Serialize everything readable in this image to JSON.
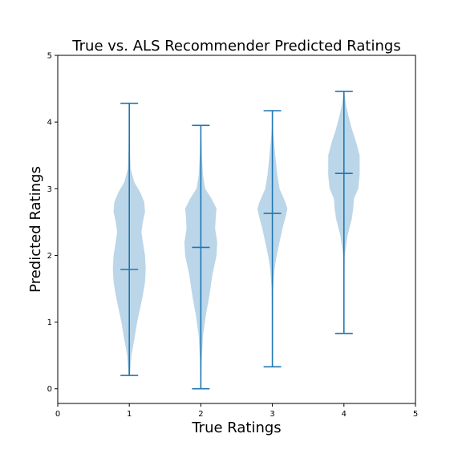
{
  "chart_data": {
    "type": "violin",
    "title": "True vs. ALS Recommender Predicted Ratings",
    "xlabel": "True Ratings",
    "ylabel": "Predicted Ratings",
    "xlim": [
      0,
      5
    ],
    "ylim": [
      -0.22,
      5
    ],
    "xticks": [
      "0",
      "1",
      "2",
      "3",
      "4",
      "5"
    ],
    "yticks": [
      "0",
      "1",
      "2",
      "3",
      "4",
      "5"
    ],
    "grid": false,
    "color": "#1f77b4",
    "violins": [
      {
        "position": 1,
        "min": 0.2,
        "max": 4.28,
        "mean": 1.79,
        "profile": [
          [
            0.2,
            0.01
          ],
          [
            0.5,
            0.03
          ],
          [
            0.8,
            0.08
          ],
          [
            1.0,
            0.11
          ],
          [
            1.2,
            0.15
          ],
          [
            1.4,
            0.19
          ],
          [
            1.6,
            0.22
          ],
          [
            1.8,
            0.23
          ],
          [
            2.0,
            0.22
          ],
          [
            2.2,
            0.19
          ],
          [
            2.35,
            0.17
          ],
          [
            2.5,
            0.19
          ],
          [
            2.65,
            0.22
          ],
          [
            2.8,
            0.21
          ],
          [
            2.95,
            0.15
          ],
          [
            3.1,
            0.07
          ],
          [
            3.3,
            0.02
          ],
          [
            3.6,
            0.01
          ],
          [
            4.28,
            0.003
          ]
        ]
      },
      {
        "position": 2,
        "min": 0.0,
        "max": 3.95,
        "mean": 2.12,
        "profile": [
          [
            0.0,
            0.005
          ],
          [
            0.4,
            0.01
          ],
          [
            0.8,
            0.03
          ],
          [
            1.1,
            0.07
          ],
          [
            1.4,
            0.12
          ],
          [
            1.7,
            0.16
          ],
          [
            2.0,
            0.22
          ],
          [
            2.2,
            0.23
          ],
          [
            2.4,
            0.2
          ],
          [
            2.6,
            0.21
          ],
          [
            2.7,
            0.22
          ],
          [
            2.85,
            0.15
          ],
          [
            3.0,
            0.06
          ],
          [
            3.2,
            0.03
          ],
          [
            3.5,
            0.015
          ],
          [
            3.95,
            0.003
          ]
        ]
      },
      {
        "position": 3,
        "min": 0.33,
        "max": 4.17,
        "mean": 2.63,
        "profile": [
          [
            0.33,
            0.005
          ],
          [
            1.0,
            0.005
          ],
          [
            1.5,
            0.01
          ],
          [
            1.8,
            0.03
          ],
          [
            2.0,
            0.06
          ],
          [
            2.2,
            0.1
          ],
          [
            2.4,
            0.14
          ],
          [
            2.6,
            0.19
          ],
          [
            2.7,
            0.21
          ],
          [
            2.8,
            0.18
          ],
          [
            3.0,
            0.1
          ],
          [
            3.2,
            0.07
          ],
          [
            3.5,
            0.04
          ],
          [
            3.8,
            0.015
          ],
          [
            4.0,
            0.005
          ],
          [
            4.17,
            0.003
          ]
        ]
      },
      {
        "position": 4,
        "min": 0.83,
        "max": 4.46,
        "mean": 3.23,
        "profile": [
          [
            0.83,
            0.005
          ],
          [
            1.5,
            0.005
          ],
          [
            2.0,
            0.01
          ],
          [
            2.3,
            0.05
          ],
          [
            2.55,
            0.11
          ],
          [
            2.7,
            0.13
          ],
          [
            2.85,
            0.14
          ],
          [
            3.0,
            0.2
          ],
          [
            3.2,
            0.22
          ],
          [
            3.5,
            0.22
          ],
          [
            3.7,
            0.17
          ],
          [
            3.9,
            0.11
          ],
          [
            4.1,
            0.06
          ],
          [
            4.25,
            0.03
          ],
          [
            4.46,
            0.003
          ]
        ]
      }
    ]
  }
}
